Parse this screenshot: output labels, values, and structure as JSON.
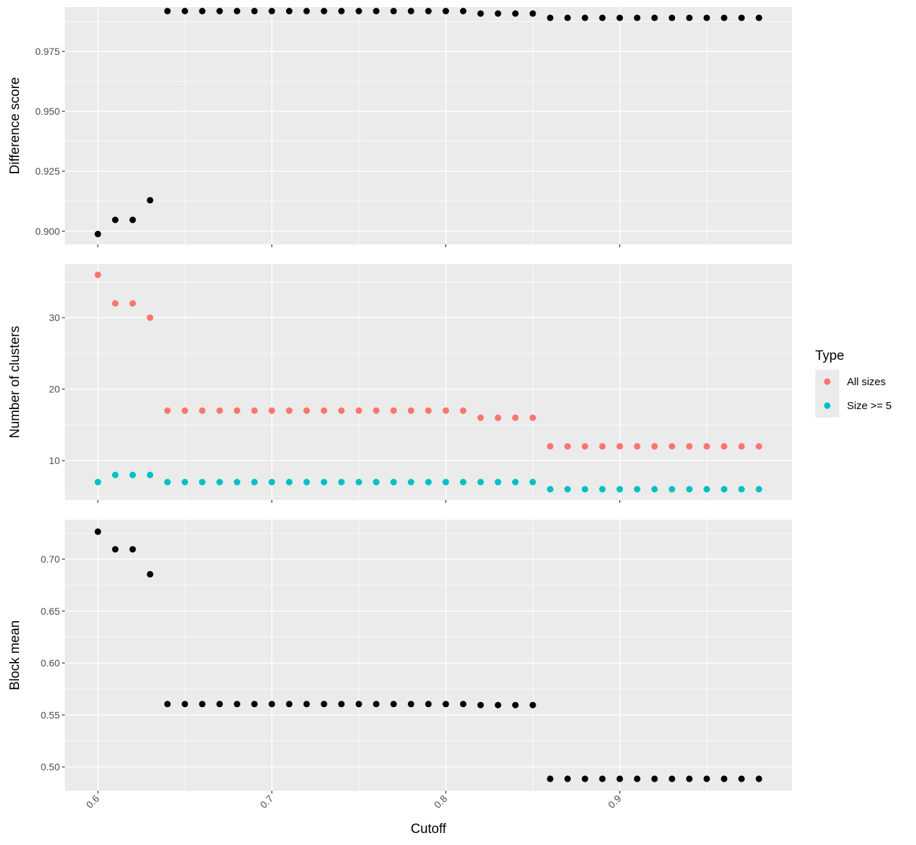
{
  "chart_data": [
    {
      "type": "scatter",
      "panel": "top",
      "ylabel": "Difference score",
      "xlabel": "",
      "ylim": [
        0.8945,
        0.9935
      ],
      "yticks": [
        0.9,
        0.925,
        0.95,
        0.975
      ],
      "ytick_labels": [
        "0.900",
        "0.925",
        "0.950",
        "0.975"
      ],
      "grid": true,
      "series": [
        {
          "color": "#000000",
          "x": [
            0.6,
            0.61,
            0.62,
            0.63,
            0.64,
            0.65,
            0.66,
            0.67,
            0.68,
            0.69,
            0.7,
            0.71,
            0.72,
            0.73,
            0.74,
            0.75,
            0.76,
            0.77,
            0.78,
            0.79,
            0.8,
            0.81,
            0.82,
            0.83,
            0.84,
            0.85,
            0.86,
            0.87,
            0.88,
            0.89,
            0.9,
            0.91,
            0.92,
            0.93,
            0.94,
            0.95,
            0.96,
            0.97,
            0.98
          ],
          "y": [
            0.8988,
            0.9047,
            0.9047,
            0.9129,
            0.9918,
            0.9918,
            0.9918,
            0.9918,
            0.9918,
            0.9918,
            0.9918,
            0.9918,
            0.9918,
            0.9918,
            0.9918,
            0.9918,
            0.9918,
            0.9918,
            0.9918,
            0.9918,
            0.9918,
            0.9918,
            0.9908,
            0.9908,
            0.9908,
            0.9908,
            0.989,
            0.989,
            0.989,
            0.989,
            0.989,
            0.989,
            0.989,
            0.989,
            0.989,
            0.989,
            0.989,
            0.989,
            0.989
          ]
        }
      ]
    },
    {
      "type": "scatter",
      "panel": "middle",
      "ylabel": "Number of clusters",
      "xlabel": "",
      "ylim": [
        4.5,
        37.5
      ],
      "yticks": [
        10,
        20,
        30
      ],
      "ytick_labels": [
        "10",
        "20",
        "30"
      ],
      "grid": true,
      "series": [
        {
          "name": "All sizes",
          "color": "#F8766D",
          "x": [
            0.6,
            0.61,
            0.62,
            0.63,
            0.64,
            0.65,
            0.66,
            0.67,
            0.68,
            0.69,
            0.7,
            0.71,
            0.72,
            0.73,
            0.74,
            0.75,
            0.76,
            0.77,
            0.78,
            0.79,
            0.8,
            0.81,
            0.82,
            0.83,
            0.84,
            0.85,
            0.86,
            0.87,
            0.88,
            0.89,
            0.9,
            0.91,
            0.92,
            0.93,
            0.94,
            0.95,
            0.96,
            0.97,
            0.98
          ],
          "y": [
            36,
            32,
            32,
            30,
            17,
            17,
            17,
            17,
            17,
            17,
            17,
            17,
            17,
            17,
            17,
            17,
            17,
            17,
            17,
            17,
            17,
            17,
            16,
            16,
            16,
            16,
            12,
            12,
            12,
            12,
            12,
            12,
            12,
            12,
            12,
            12,
            12,
            12,
            12
          ]
        },
        {
          "name": "Size >= 5",
          "color": "#00BFC4",
          "x": [
            0.6,
            0.61,
            0.62,
            0.63,
            0.64,
            0.65,
            0.66,
            0.67,
            0.68,
            0.69,
            0.7,
            0.71,
            0.72,
            0.73,
            0.74,
            0.75,
            0.76,
            0.77,
            0.78,
            0.79,
            0.8,
            0.81,
            0.82,
            0.83,
            0.84,
            0.85,
            0.86,
            0.87,
            0.88,
            0.89,
            0.9,
            0.91,
            0.92,
            0.93,
            0.94,
            0.95,
            0.96,
            0.97,
            0.98
          ],
          "y": [
            7,
            8,
            8,
            8,
            7,
            7,
            7,
            7,
            7,
            7,
            7,
            7,
            7,
            7,
            7,
            7,
            7,
            7,
            7,
            7,
            7,
            7,
            7,
            7,
            7,
            7,
            6,
            6,
            6,
            6,
            6,
            6,
            6,
            6,
            6,
            6,
            6,
            6,
            6
          ]
        }
      ]
    },
    {
      "type": "scatter",
      "panel": "bottom",
      "ylabel": "Block mean",
      "xlabel": "Cutoff",
      "ylim": [
        0.477,
        0.738
      ],
      "yticks": [
        0.5,
        0.55,
        0.6,
        0.65,
        0.7
      ],
      "ytick_labels": [
        "0.50",
        "0.55",
        "0.60",
        "0.65",
        "0.70"
      ],
      "xlim": [
        0.581,
        0.999
      ],
      "xticks": [
        0.6,
        0.7,
        0.8,
        0.9
      ],
      "xtick_labels": [
        "0.6",
        "0.7",
        "0.8",
        "0.9"
      ],
      "grid": true,
      "series": [
        {
          "color": "#000000",
          "x": [
            0.6,
            0.61,
            0.62,
            0.63,
            0.64,
            0.65,
            0.66,
            0.67,
            0.68,
            0.69,
            0.7,
            0.71,
            0.72,
            0.73,
            0.74,
            0.75,
            0.76,
            0.77,
            0.78,
            0.79,
            0.8,
            0.81,
            0.82,
            0.83,
            0.84,
            0.85,
            0.86,
            0.87,
            0.88,
            0.89,
            0.9,
            0.91,
            0.92,
            0.93,
            0.94,
            0.95,
            0.96,
            0.97,
            0.98
          ],
          "y": [
            0.7265,
            0.7095,
            0.7095,
            0.6855,
            0.5605,
            0.5605,
            0.5605,
            0.5605,
            0.5605,
            0.5605,
            0.5605,
            0.5605,
            0.5605,
            0.5605,
            0.5605,
            0.5605,
            0.5605,
            0.5605,
            0.5605,
            0.5605,
            0.5605,
            0.5605,
            0.5595,
            0.5595,
            0.5595,
            0.5595,
            0.4885,
            0.4885,
            0.4885,
            0.4885,
            0.4885,
            0.4885,
            0.4885,
            0.4885,
            0.4885,
            0.4885,
            0.4885,
            0.4885,
            0.4885
          ]
        }
      ]
    }
  ],
  "legend": {
    "title": "Type",
    "placement": "right",
    "items": [
      {
        "label": "All sizes",
        "color": "#F8766D"
      },
      {
        "label": "Size >= 5",
        "color": "#00BFC4"
      }
    ]
  },
  "colors": {
    "panel_background": "#EBEBEB",
    "grid_major": "#FFFFFF",
    "axis_text": "#4D4D4D",
    "tick_mark": "#333333"
  }
}
